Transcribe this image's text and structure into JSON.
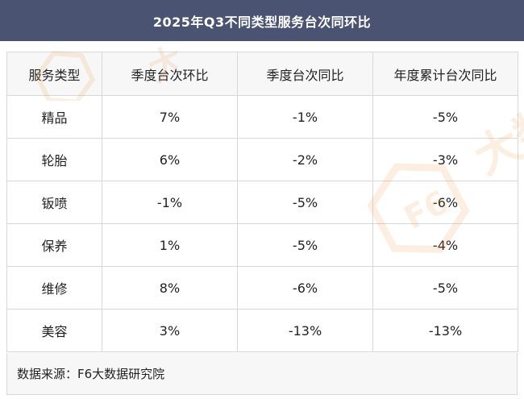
{
  "title": "2025年Q3不同类型服务台次同环比",
  "table": {
    "headers": [
      "服务类型",
      "季度台次环比",
      "季度台次同比",
      "年度累计台次同比"
    ],
    "rows": [
      {
        "type": "精品",
        "qoq": "7%",
        "yoy": "-1%",
        "ytd": "-5%"
      },
      {
        "type": "轮胎",
        "qoq": "6%",
        "yoy": "-2%",
        "ytd": "-3%"
      },
      {
        "type": "钣喷",
        "qoq": "-1%",
        "yoy": "-5%",
        "ytd": "-6%"
      },
      {
        "type": "保养",
        "qoq": "1%",
        "yoy": "-5%",
        "ytd": "-4%"
      },
      {
        "type": "维修",
        "qoq": "8%",
        "yoy": "-6%",
        "ytd": "-5%"
      },
      {
        "type": "美容",
        "qoq": "3%",
        "yoy": "-13%",
        "ytd": "-13%"
      }
    ]
  },
  "footer": {
    "source": "数据来源：F6大数据研究院"
  },
  "watermark": {
    "logo_text": "F6",
    "brand_text": "大数",
    "color": "#f0a050"
  },
  "colors": {
    "title_bg": "#4a5372",
    "positive": "#e03131",
    "negative": "#4a9e75",
    "header_bg": "#f7f7f7",
    "border": "#d8d8d8"
  }
}
